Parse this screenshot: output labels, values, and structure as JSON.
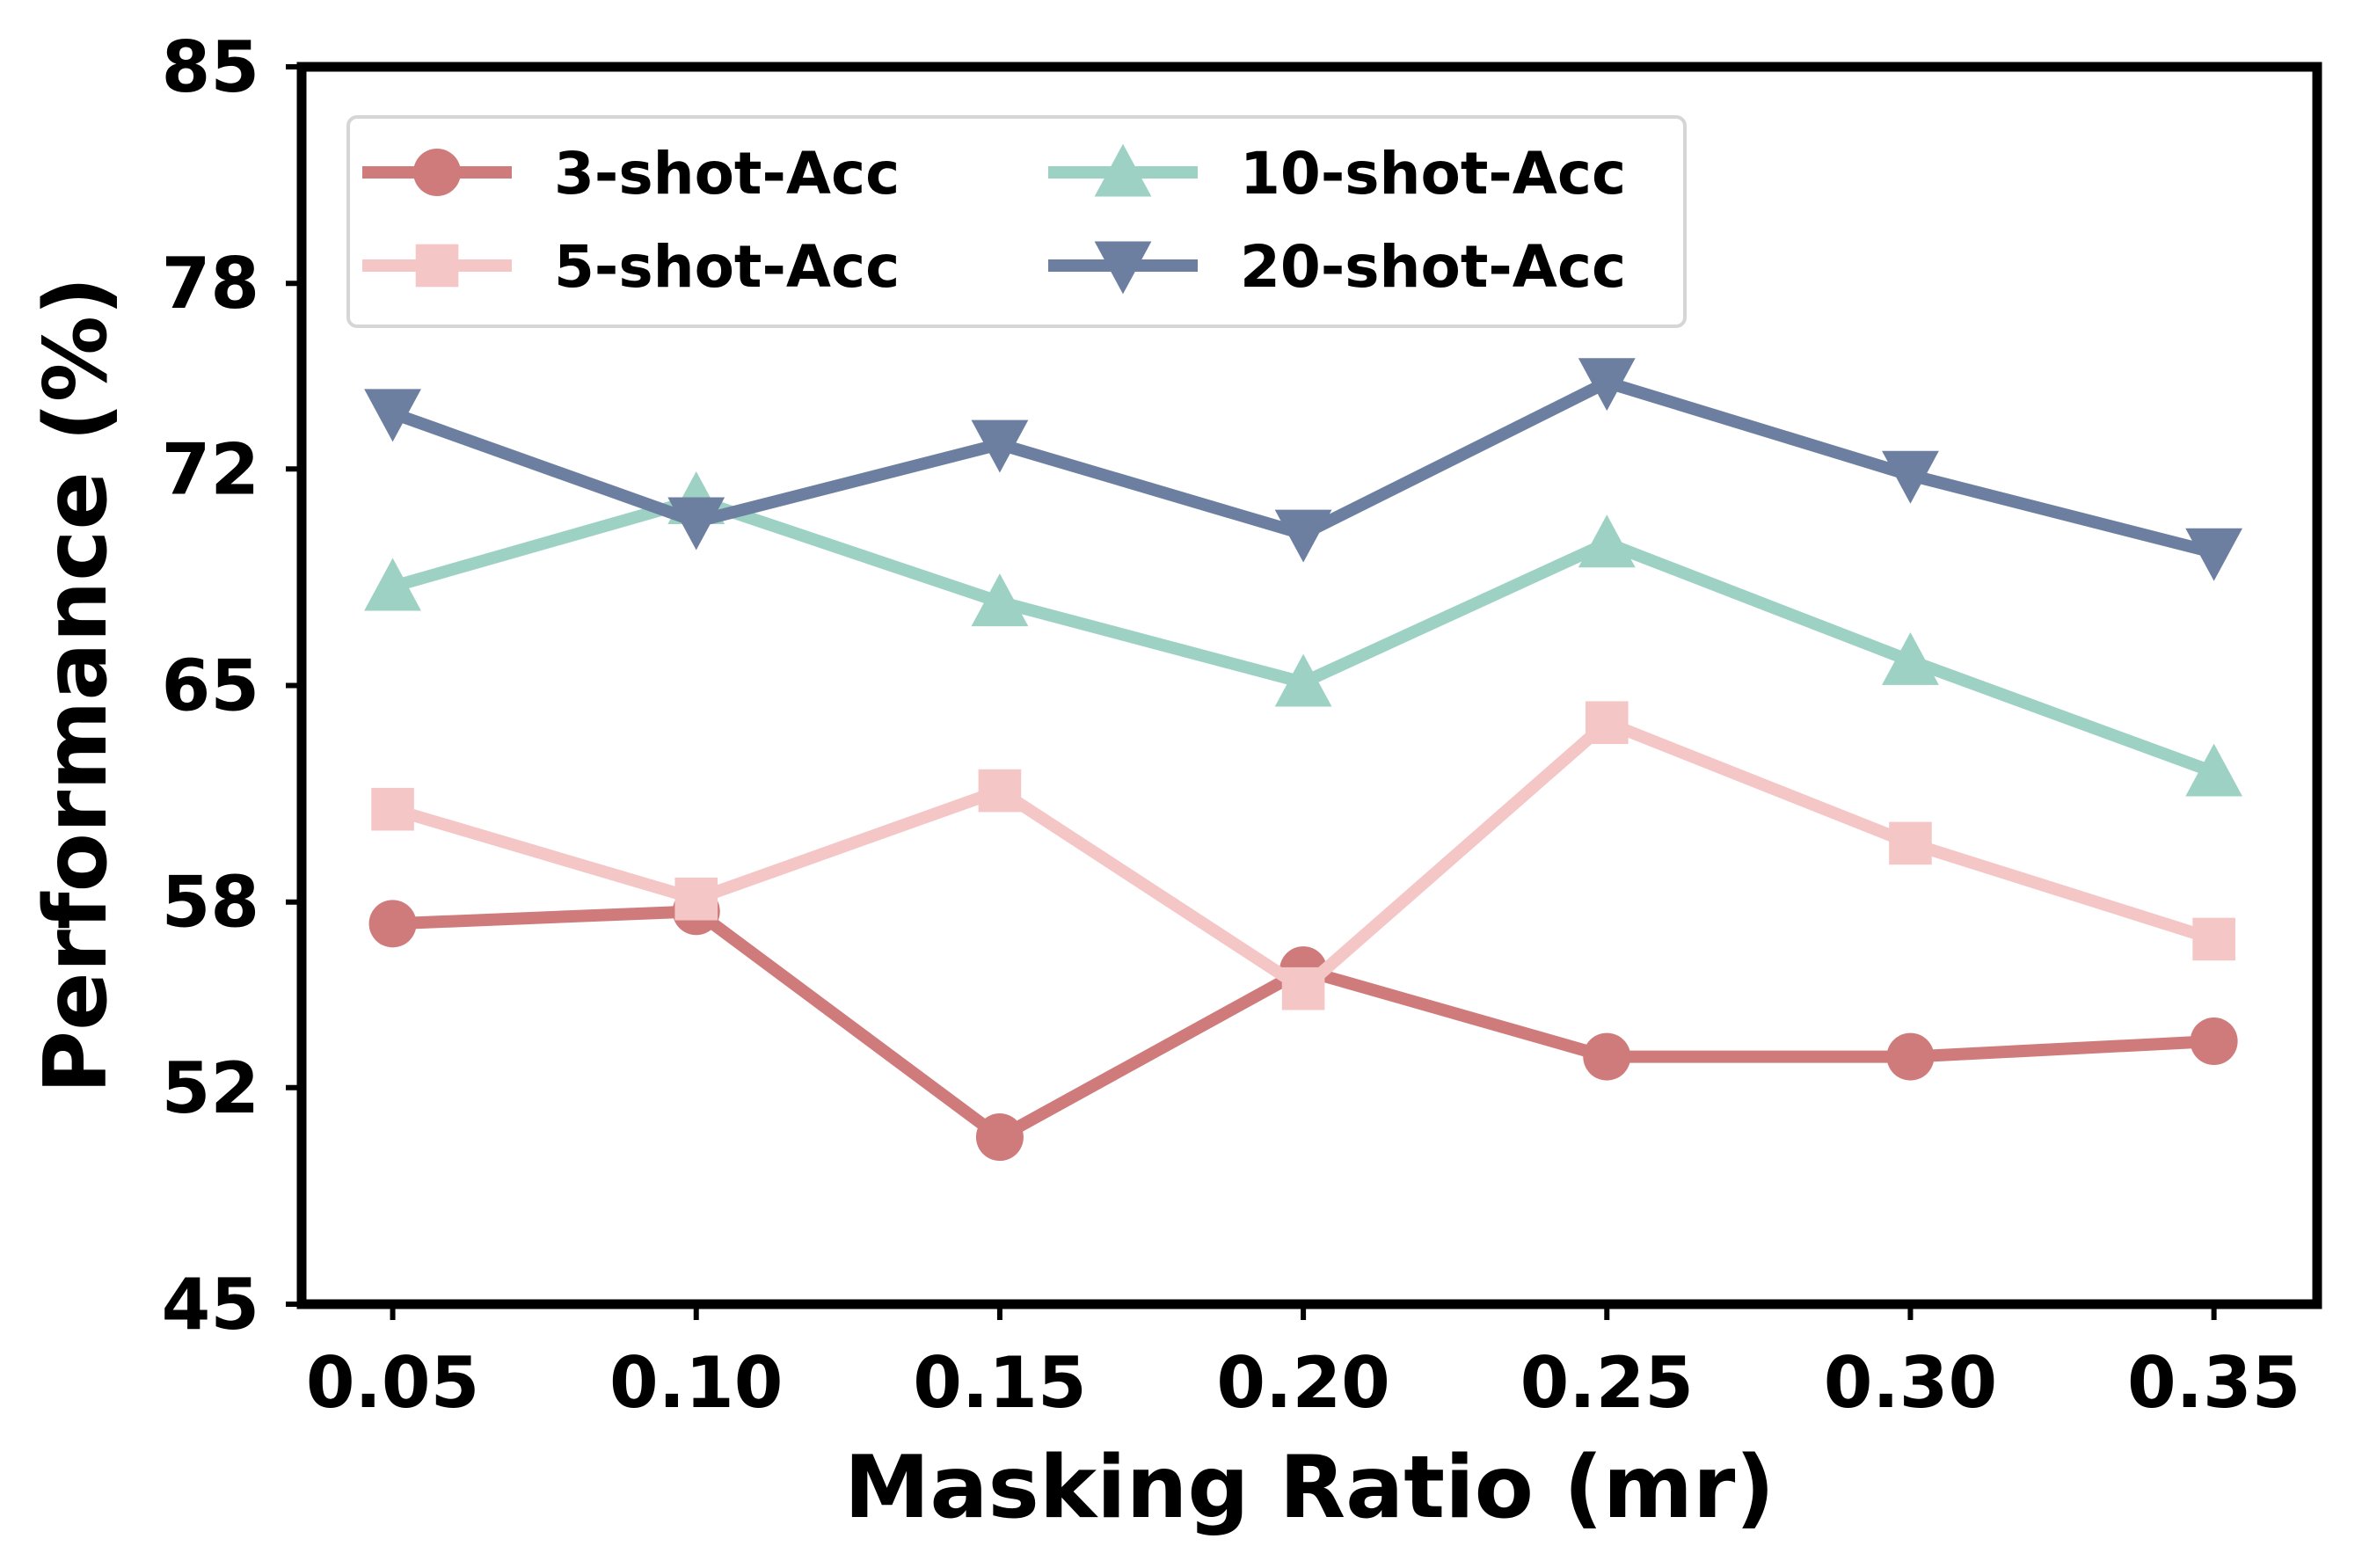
{
  "chart_data": {
    "type": "line",
    "title": "",
    "xlabel": "Masking Ratio (mr)",
    "ylabel": "Performance (%)",
    "x": [
      0.05,
      0.1,
      0.15,
      0.2,
      0.25,
      0.3,
      0.35
    ],
    "xtick_labels": [
      "0.05",
      "0.10",
      "0.15",
      "0.20",
      "0.25",
      "0.30",
      "0.35"
    ],
    "yticks": [
      45,
      52,
      58,
      65,
      72,
      78,
      85
    ],
    "ytick_labels": [
      "45",
      "52",
      "58",
      "65",
      "72",
      "78",
      "85"
    ],
    "xlim": [
      0.035,
      0.367
    ],
    "ylim": [
      45,
      85
    ],
    "legend_position": "top-left",
    "legend_columns": 2,
    "grid": false,
    "series": [
      {
        "name": "3-shot-Acc",
        "marker": "circle",
        "color": "#cf7b7b",
        "values": [
          57.3,
          57.7,
          50.4,
          55.8,
          53.0,
          53.0,
          53.5
        ]
      },
      {
        "name": "5-shot-Acc",
        "marker": "square",
        "color": "#f5c6c6",
        "values": [
          61.0,
          58.1,
          61.6,
          55.2,
          63.8,
          59.9,
          56.8
        ]
      },
      {
        "name": "10-shot-Acc",
        "marker": "triangle-up",
        "color": "#9dd1c4",
        "values": [
          68.2,
          71.0,
          67.7,
          65.1,
          69.6,
          65.8,
          62.2
        ]
      },
      {
        "name": "20-shot-Acc",
        "marker": "triangle-down",
        "color": "#6c7fa0",
        "values": [
          73.8,
          70.3,
          72.8,
          69.9,
          74.8,
          71.8,
          69.3
        ]
      }
    ]
  }
}
